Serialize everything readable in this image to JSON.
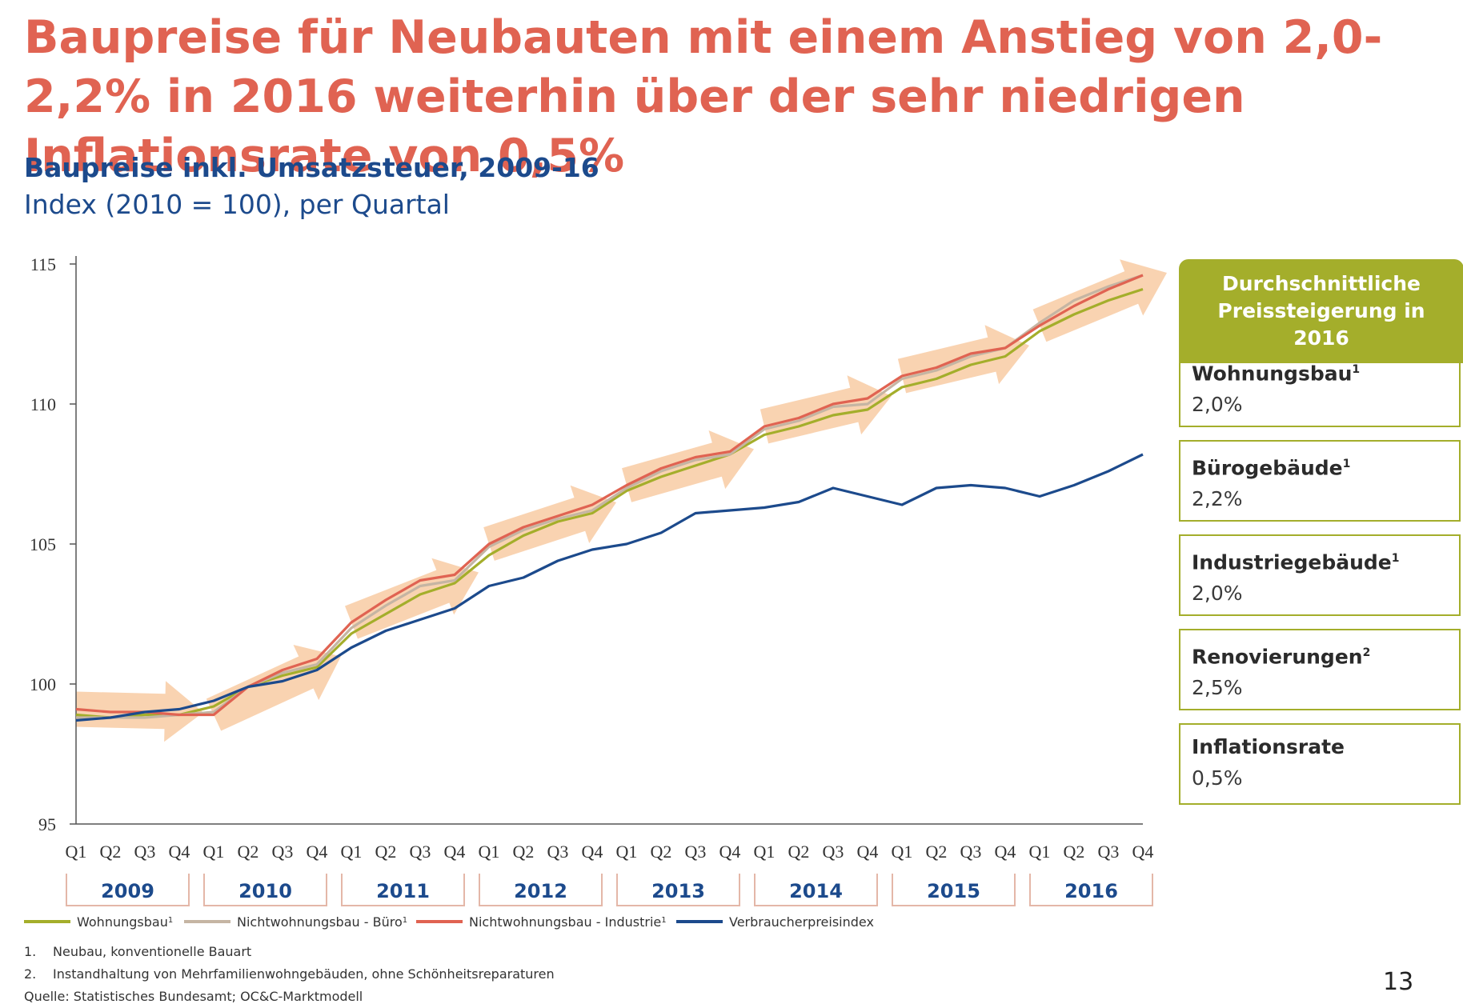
{
  "headline": "Baupreise für Neubauten mit einem Anstieg von 2,0-2,2% in 2016 weiterhin über der sehr niedrigen Inflationsrate von 0,5%",
  "subtitle": "Baupreise inkl. Umsatzsteuer, 2009-16",
  "unit_line": "Index (2010 = 100), per Quartal",
  "side_panel": {
    "header": "Durchschnittliche Preissteigerung in 2016",
    "items": [
      {
        "label": "Wohnungsbau",
        "note": "1",
        "value": "2,0%"
      },
      {
        "label": "Bürogebäude",
        "note": "1",
        "value": "2,2%"
      },
      {
        "label": "Industriegebäude",
        "note": "1",
        "value": "2,0%"
      },
      {
        "label": "Renovierungen",
        "note": "2",
        "value": "2,5%"
      },
      {
        "label": "Inflationsrate",
        "note": "",
        "value": "0,5%"
      }
    ]
  },
  "footnotes": [
    {
      "num": "1.",
      "text": "Neubau, konventionelle Bauart"
    },
    {
      "num": "2.",
      "text": "Instandhaltung von Mehrfamilienwohngebäuden, ohne Schönheitsreparaturen"
    }
  ],
  "source": "Quelle: Statistisches Bundesamt; OC&C-Marktmodell",
  "page_number": "13",
  "colors": {
    "headline": "#e06352",
    "navy": "#1c4a8c",
    "wohnungsbau": "#a4ae2b",
    "buero": "#c5b5a3",
    "industrie": "#e06352",
    "vpi": "#1c4a8c",
    "trend_arrow": "#f7c89e",
    "box_border": "#a4ae2b"
  },
  "chart_data": {
    "type": "line",
    "title": "Baupreise inkl. Umsatzsteuer, 2009-16",
    "subtitle": "Index (2010 = 100), per Quartal",
    "ylim": [
      95,
      115
    ],
    "yticks": [
      95,
      100,
      105,
      110,
      115
    ],
    "grid": false,
    "legend_position": "bottom",
    "categories": [
      "Q1",
      "Q2",
      "Q3",
      "Q4",
      "Q1",
      "Q2",
      "Q3",
      "Q4",
      "Q1",
      "Q2",
      "Q3",
      "Q4",
      "Q1",
      "Q2",
      "Q3",
      "Q4",
      "Q1",
      "Q2",
      "Q3",
      "Q4",
      "Q1",
      "Q2",
      "Q3",
      "Q4",
      "Q1",
      "Q2",
      "Q3",
      "Q4",
      "Q1",
      "Q2",
      "Q3",
      "Q4"
    ],
    "years": [
      "2009",
      "2010",
      "2011",
      "2012",
      "2013",
      "2014",
      "2015",
      "2016"
    ],
    "series": [
      {
        "name": "Wohnungsbau",
        "note": "1",
        "color": "#a4ae2b",
        "values": [
          98.9,
          98.8,
          98.9,
          98.9,
          99.2,
          99.9,
          100.3,
          100.6,
          101.8,
          102.5,
          103.2,
          103.6,
          104.6,
          105.3,
          105.8,
          106.1,
          106.9,
          107.4,
          107.8,
          108.2,
          108.9,
          109.2,
          109.6,
          109.8,
          110.6,
          110.9,
          111.4,
          111.7,
          112.6,
          113.2,
          113.7,
          114.1
        ]
      },
      {
        "name": "Nichtwohnungsbau - Büro",
        "note": "1",
        "color": "#c5b5a3",
        "values": [
          98.8,
          98.8,
          98.8,
          98.9,
          99.0,
          99.9,
          100.4,
          100.7,
          102.0,
          102.8,
          103.5,
          103.7,
          104.9,
          105.5,
          105.9,
          106.2,
          107.0,
          107.6,
          108.0,
          108.2,
          109.1,
          109.4,
          109.9,
          110.0,
          110.9,
          111.2,
          111.7,
          112.0,
          112.9,
          113.7,
          114.2,
          114.6
        ]
      },
      {
        "name": "Nichtwohnungsbau - Industrie",
        "note": "1",
        "color": "#e06352",
        "values": [
          99.1,
          99.0,
          99.0,
          98.9,
          98.9,
          99.9,
          100.5,
          100.9,
          102.2,
          103.0,
          103.7,
          103.9,
          105.0,
          105.6,
          106.0,
          106.4,
          107.1,
          107.7,
          108.1,
          108.3,
          109.2,
          109.5,
          110.0,
          110.2,
          111.0,
          111.3,
          111.8,
          112.0,
          112.8,
          113.5,
          114.1,
          114.6
        ]
      },
      {
        "name": "Verbraucherpreisindex",
        "note": "",
        "color": "#1c4a8c",
        "values": [
          98.7,
          98.8,
          99.0,
          99.1,
          99.4,
          99.9,
          100.1,
          100.5,
          101.3,
          101.9,
          102.3,
          102.7,
          103.5,
          103.8,
          104.4,
          104.8,
          105.0,
          105.4,
          106.1,
          106.2,
          106.3,
          106.5,
          107.0,
          106.7,
          106.4,
          107.0,
          107.1,
          107.0,
          106.7,
          107.1,
          107.6,
          108.2
        ]
      }
    ]
  }
}
